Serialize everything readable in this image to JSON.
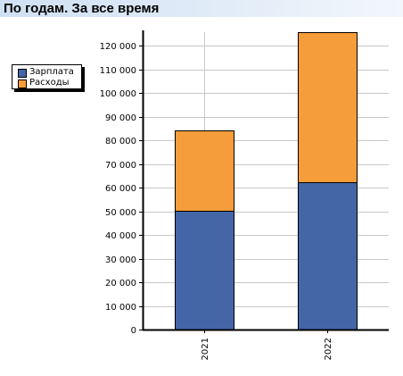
{
  "header": {
    "title": "По годам. За все время"
  },
  "chart_data": {
    "type": "bar",
    "stacked": true,
    "title": "По годам. За все время",
    "categories": [
      "2021",
      "2022"
    ],
    "series": [
      {
        "name": "Зарплата",
        "color": "#4466a7",
        "values": [
          50200,
          62400
        ]
      },
      {
        "name": "Расходы",
        "color": "#f59d3a",
        "values": [
          33800,
          63300
        ]
      }
    ],
    "ylim": [
      0,
      125700
    ],
    "ytick_step": 10000,
    "ytick_labels": [
      "0",
      "10 000",
      "20 000",
      "30 000",
      "40 000",
      "50 000",
      "60 000",
      "70 000",
      "80 000",
      "90 000",
      "100 000",
      "110 000",
      "120 000"
    ],
    "grid": true,
    "legend_position": "left"
  }
}
